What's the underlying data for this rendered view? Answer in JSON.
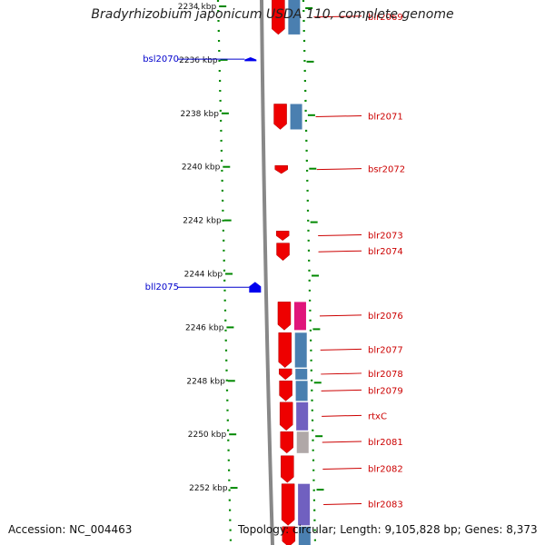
{
  "title": "Bradyrhizobium japonicum USDA 110, complete genome",
  "footer": {
    "accession": "Accession: NC_004463",
    "topology": "Topology: circular; Length: 9,105,828 bp; Genes: 8,373"
  },
  "colors": {
    "forward_label": "#cc0000",
    "reverse_label": "#0000cc",
    "tick": "#008800",
    "backbone": "#888888",
    "gene_arrow": "#ee0000",
    "reverse_arrow": "#0000ee",
    "cog_blue": "#4a7fb0",
    "cog_pink": "#e0157a",
    "cog_purple": "#7060c0",
    "cog_grey": "#b0a8a8"
  },
  "kbp_ticks": [
    {
      "label": "2234 kbp",
      "kbp": 2234
    },
    {
      "label": "2236 kbp",
      "kbp": 2236
    },
    {
      "label": "2238 kbp",
      "kbp": 2238
    },
    {
      "label": "2240 kbp",
      "kbp": 2240
    },
    {
      "label": "2242 kbp",
      "kbp": 2242
    },
    {
      "label": "2244 kbp",
      "kbp": 2244
    },
    {
      "label": "2246 kbp",
      "kbp": 2246
    },
    {
      "label": "2248 kbp",
      "kbp": 2248
    },
    {
      "label": "2250 kbp",
      "kbp": 2250
    },
    {
      "label": "2252 kbp",
      "kbp": 2252
    }
  ],
  "genes": [
    {
      "name": "blr2069",
      "strand": "+",
      "start_kbp": 2233.75,
      "end_kbp": 2235.05,
      "cog": "blue"
    },
    {
      "name": "bsl2070",
      "strand": "-",
      "start_kbp": 2235.9,
      "end_kbp": 2236.05,
      "cog": ""
    },
    {
      "name": "blr2071",
      "strand": "+",
      "start_kbp": 2237.65,
      "end_kbp": 2238.6,
      "cog": "blue"
    },
    {
      "name": "bsr2072",
      "strand": "+",
      "start_kbp": 2239.95,
      "end_kbp": 2240.25,
      "cog": ""
    },
    {
      "name": "blr2073",
      "strand": "+",
      "start_kbp": 2242.4,
      "end_kbp": 2242.75,
      "cog": ""
    },
    {
      "name": "blr2074",
      "strand": "+",
      "start_kbp": 2242.85,
      "end_kbp": 2243.5,
      "cog": ""
    },
    {
      "name": "bll2075",
      "strand": "-",
      "start_kbp": 2244.3,
      "end_kbp": 2244.7,
      "cog": ""
    },
    {
      "name": "blr2076",
      "strand": "+",
      "start_kbp": 2245.05,
      "end_kbp": 2246.1,
      "cog": "pink"
    },
    {
      "name": "blr2077",
      "strand": "+",
      "start_kbp": 2246.2,
      "end_kbp": 2247.5,
      "cog": "blue"
    },
    {
      "name": "blr2078",
      "strand": "+",
      "start_kbp": 2247.55,
      "end_kbp": 2247.95,
      "cog": "blue"
    },
    {
      "name": "blr2079",
      "strand": "+",
      "start_kbp": 2248.0,
      "end_kbp": 2248.75,
      "cog": "blue"
    },
    {
      "name": "rtxC",
      "strand": "+",
      "start_kbp": 2248.8,
      "end_kbp": 2249.85,
      "cog": "purple"
    },
    {
      "name": "blr2081",
      "strand": "+",
      "start_kbp": 2249.9,
      "end_kbp": 2250.7,
      "cog": "grey"
    },
    {
      "name": "blr2082",
      "strand": "+",
      "start_kbp": 2250.8,
      "end_kbp": 2251.8,
      "cog": ""
    },
    {
      "name": "blr2083",
      "strand": "+",
      "start_kbp": 2251.85,
      "end_kbp": 2253.4,
      "cog": "purple"
    },
    {
      "name": "",
      "strand": "+",
      "start_kbp": 2253.45,
      "end_kbp": 2254.2,
      "cog": "blue"
    }
  ]
}
